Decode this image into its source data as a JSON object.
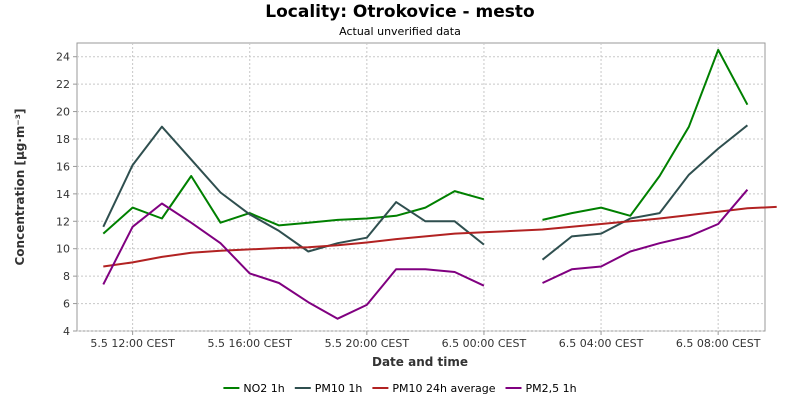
{
  "chart_data": {
    "type": "line",
    "title": "Locality: Otrokovice - mesto",
    "subtitle": "Actual unverified data",
    "xlabel": "Date and time",
    "ylabel": "Concentration [µg·m⁻³]",
    "ylim": [
      4,
      25
    ],
    "yticks": [
      4,
      6,
      8,
      10,
      12,
      14,
      16,
      18,
      20,
      22,
      24
    ],
    "xticks": [
      {
        "t": 12,
        "label": "5.5 12:00 CEST"
      },
      {
        "t": 16,
        "label": "5.5 16:00 CEST"
      },
      {
        "t": 20,
        "label": "5.5 20:00 CEST"
      },
      {
        "t": 24,
        "label": "6.5 00:00 CEST"
      },
      {
        "t": 28,
        "label": "6.5 04:00 CEST"
      },
      {
        "t": 32,
        "label": "6.5 08:00 CEST"
      }
    ],
    "xlim": [
      10.1,
      33.6
    ],
    "grid": true,
    "legend_position": "bottom",
    "series": [
      {
        "name": "NO2 1h",
        "color": "#008000",
        "points": [
          [
            11,
            11.1
          ],
          [
            12,
            13.0
          ],
          [
            13,
            12.2
          ],
          [
            14,
            15.3
          ],
          [
            15,
            11.9
          ],
          [
            16,
            12.6
          ],
          [
            17,
            11.7
          ],
          [
            18,
            11.9
          ],
          [
            19,
            12.1
          ],
          [
            20,
            12.2
          ],
          [
            21,
            12.4
          ],
          [
            22,
            13.0
          ],
          [
            23,
            14.2
          ],
          [
            24,
            13.6
          ],
          null,
          [
            26,
            12.1
          ],
          [
            27,
            12.6
          ],
          [
            28,
            13.0
          ],
          [
            29,
            12.4
          ],
          [
            30,
            15.3
          ],
          [
            31,
            18.9
          ],
          [
            32,
            24.5
          ],
          [
            33,
            20.5
          ]
        ]
      },
      {
        "name": "PM10 1h",
        "color": "#2f4f4f",
        "points": [
          [
            11,
            11.6
          ],
          [
            12,
            16.1
          ],
          [
            13,
            18.9
          ],
          [
            14,
            16.5
          ],
          [
            15,
            14.1
          ],
          [
            16,
            12.5
          ],
          [
            17,
            11.3
          ],
          [
            18,
            9.8
          ],
          [
            19,
            10.4
          ],
          [
            20,
            10.8
          ],
          [
            21,
            13.4
          ],
          [
            22,
            12.0
          ],
          [
            23,
            12.0
          ],
          [
            24,
            10.3
          ],
          null,
          [
            26,
            9.2
          ],
          [
            27,
            10.9
          ],
          [
            28,
            11.1
          ],
          [
            29,
            12.2
          ],
          [
            30,
            12.6
          ],
          [
            31,
            15.4
          ],
          [
            32,
            17.3
          ],
          [
            33,
            19.0
          ]
        ]
      },
      {
        "name": "PM10 24h average",
        "color": "#b22222",
        "points": [
          [
            11,
            8.7
          ],
          [
            12,
            9.0
          ],
          [
            13,
            9.4
          ],
          [
            14,
            9.7
          ],
          [
            15,
            9.85
          ],
          [
            16,
            9.95
          ],
          [
            17,
            10.05
          ],
          [
            18,
            10.1
          ],
          [
            19,
            10.25
          ],
          [
            20,
            10.45
          ],
          [
            21,
            10.7
          ],
          [
            22,
            10.9
          ],
          [
            23,
            11.1
          ],
          [
            24,
            11.2
          ],
          [
            25,
            11.3
          ],
          [
            26,
            11.4
          ],
          [
            27,
            11.6
          ],
          [
            28,
            11.8
          ],
          [
            29,
            12.0
          ],
          [
            30,
            12.2
          ],
          [
            31,
            12.45
          ],
          [
            32,
            12.7
          ],
          [
            33,
            12.95
          ],
          [
            34,
            13.05
          ]
        ]
      },
      {
        "name": "PM2,5 1h",
        "color": "#800080",
        "points": [
          [
            11,
            7.4
          ],
          [
            12,
            11.6
          ],
          [
            13,
            13.3
          ],
          [
            14,
            11.9
          ],
          [
            15,
            10.4
          ],
          [
            16,
            8.2
          ],
          [
            17,
            7.5
          ],
          [
            18,
            6.1
          ],
          [
            19,
            4.9
          ],
          [
            20,
            5.9
          ],
          [
            21,
            8.5
          ],
          [
            22,
            8.5
          ],
          [
            23,
            8.3
          ],
          [
            24,
            7.3
          ],
          null,
          [
            26,
            7.5
          ],
          [
            27,
            8.5
          ],
          [
            28,
            8.7
          ],
          [
            29,
            9.8
          ],
          [
            30,
            10.4
          ],
          [
            31,
            10.9
          ],
          [
            32,
            11.8
          ],
          [
            33,
            14.3
          ]
        ]
      }
    ]
  }
}
